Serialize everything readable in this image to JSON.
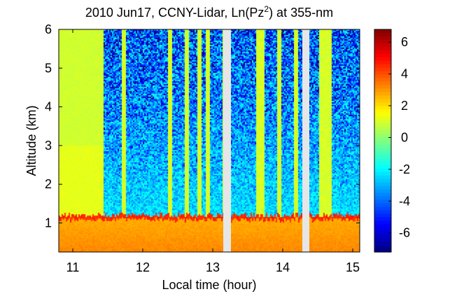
{
  "chart_data": {
    "type": "heatmap",
    "title": {
      "prefix": "2010 Jun17, CCNY-Lidar, Ln(Pz",
      "superscript": "2",
      "suffix": ") at 355-nm"
    },
    "xlabel": "Local time (hour)",
    "ylabel": "Altitude (km)",
    "xlim": [
      10.8,
      15.1
    ],
    "ylim": [
      0.25,
      6.0
    ],
    "x_ticks": [
      11,
      12,
      13,
      14,
      15
    ],
    "x_tick_labels": [
      "11",
      "12",
      "13",
      "14",
      "15"
    ],
    "y_ticks": [
      1,
      2,
      3,
      4,
      5,
      6
    ],
    "y_tick_labels": [
      "1",
      "2",
      "3",
      "4",
      "5",
      "6"
    ],
    "colorbar": {
      "range": [
        -7.2,
        6.8
      ],
      "ticks": [
        6,
        4,
        2,
        0,
        -2,
        -4,
        -6
      ],
      "tick_labels": [
        "6",
        "4",
        "2",
        "0",
        "-2",
        "-4",
        "-6"
      ],
      "colormap": "jet"
    },
    "data_gaps_hours": [
      [
        13.15,
        13.26
      ],
      [
        14.28,
        14.38
      ]
    ],
    "features": {
      "boundary_layer_top_km": 1.15,
      "boundary_layer_value": 4.5,
      "near_surface_value": 3.2,
      "boundary_layer_value_range": [
        2.5,
        3.5
      ],
      "free_troposphere_signal_range": [
        -6,
        -1
      ],
      "clear_period_hours": [
        10.8,
        11.45
      ],
      "clear_period_value": 1.2
    }
  }
}
